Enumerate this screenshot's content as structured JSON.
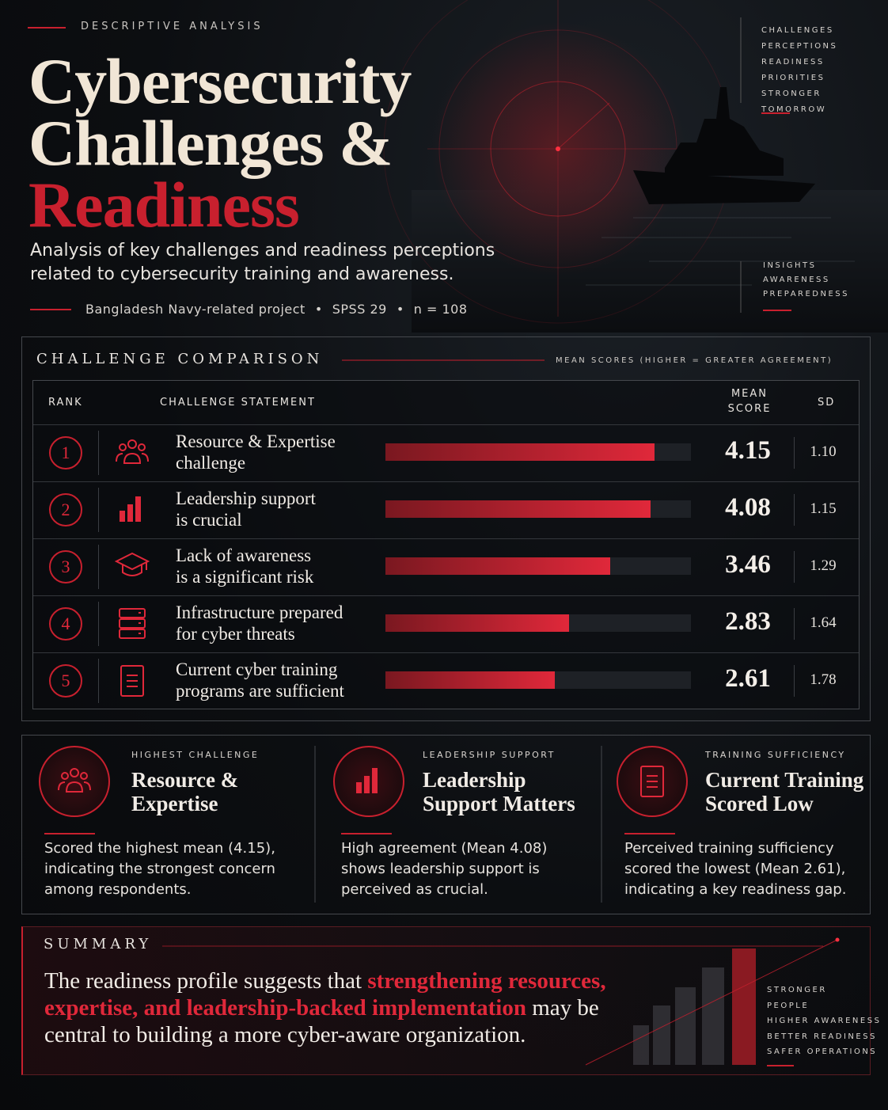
{
  "header": {
    "eyebrow": "DESCRIPTIVE ANALYSIS",
    "title_lines": [
      "Cybersecurity",
      "Challenges &",
      "Readiness"
    ],
    "subtitle_lines": [
      "Analysis of key challenges and readiness perceptions",
      "related to cybersecurity training and awareness."
    ],
    "meta": [
      "Bangladesh Navy-related project",
      "SPSS 29",
      "n = 108"
    ],
    "side_top": [
      "CHALLENGES",
      "PERCEPTIONS",
      "READINESS",
      "PRIORITIES",
      "STRONGER TOMORROW"
    ],
    "side_bottom": [
      "INSIGHTS",
      "AWARENESS",
      "PREPAREDNESS"
    ]
  },
  "table": {
    "title": "CHALLENGE COMPARISON",
    "note": "MEAN SCORES (HIGHER = GREATER AGREEMENT)",
    "columns": [
      "RANK",
      "CHALLENGE STATEMENT",
      "MEAN SCORE",
      "SD"
    ],
    "rows": [
      {
        "rank": 1,
        "statement": [
          "Resource & Expertise",
          "challenge"
        ],
        "mean": 4.15,
        "sd": "1.10"
      },
      {
        "rank": 2,
        "statement": [
          "Leadership support",
          "is crucial"
        ],
        "mean": 4.08,
        "sd": "1.15"
      },
      {
        "rank": 3,
        "statement": [
          "Lack of awareness",
          "is a significant risk"
        ],
        "mean": 3.46,
        "sd": "1.29"
      },
      {
        "rank": 4,
        "statement": [
          "Infrastructure prepared",
          "for cyber threats"
        ],
        "mean": 2.83,
        "sd": "1.64"
      },
      {
        "rank": 5,
        "statement": [
          "Current cyber training",
          "programs are sufficient"
        ],
        "mean": 2.61,
        "sd": "1.78"
      }
    ]
  },
  "cards": [
    {
      "eyebrow": "HIGHEST CHALLENGE",
      "title": "Resource & Expertise",
      "text": "Scored the highest mean (4.15), indicating the strongest concern among respondents."
    },
    {
      "eyebrow": "LEADERSHIP SUPPORT",
      "title": "Leadership Support Matters",
      "text": "High agreement (Mean 4.08) shows leadership support is perceived as crucial."
    },
    {
      "eyebrow": "TRAINING SUFFICIENCY",
      "title": "Current Training Scored Low",
      "text": "Perceived training sufficiency scored the lowest (Mean 2.61), indicating a key readiness gap."
    }
  ],
  "summary": {
    "label": "SUMMARY",
    "text_before": "The readiness profile suggests that ",
    "text_highlight": "strengthening resources, expertise, and leadership-backed implementation",
    "text_after": " may be central to building a more cyber-aware organization.",
    "side": [
      "STRONGER",
      "PEOPLE",
      "HIGHER AWARENESS",
      "BETTER READINESS",
      "SAFER OPERATIONS"
    ]
  }
}
